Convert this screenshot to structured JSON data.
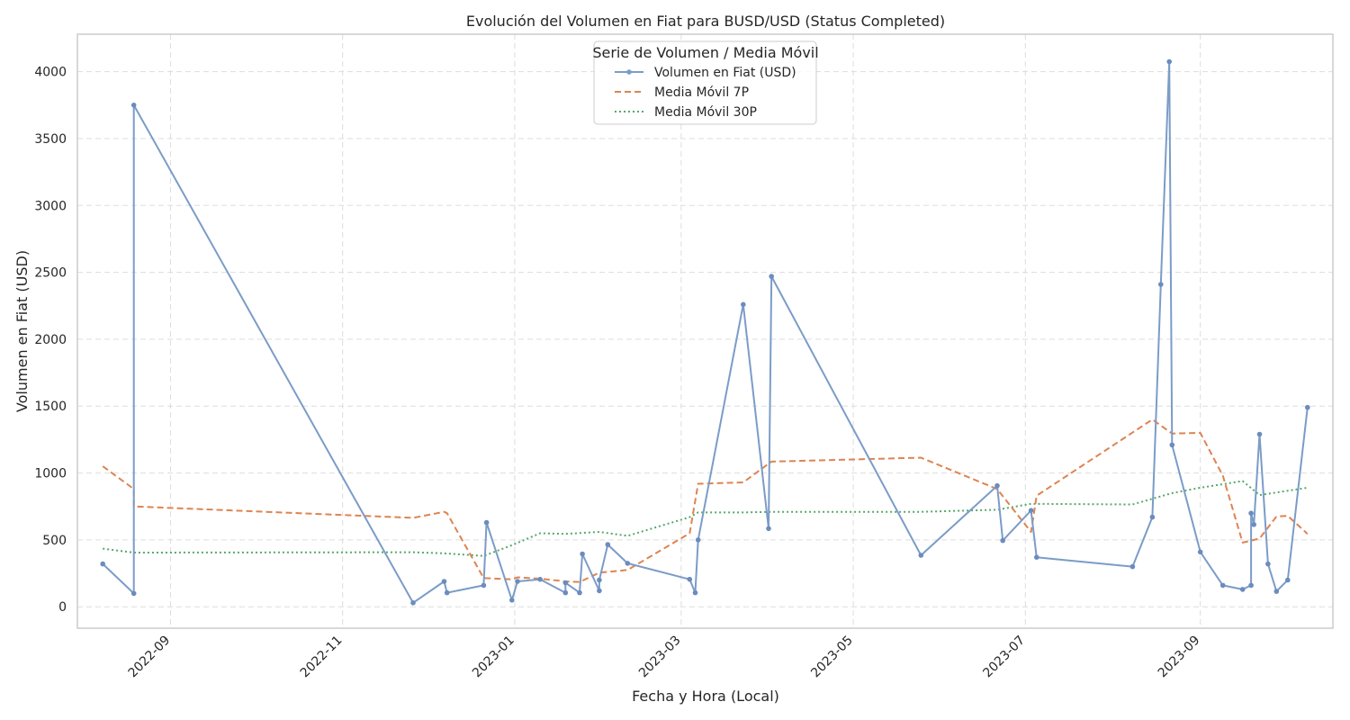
{
  "chart_data": {
    "type": "line",
    "title": "Evolución del Volumen en Fiat para BUSD/USD (Status Completed)",
    "xlabel": "Fecha y Hora (Local)",
    "ylabel": "Volumen en Fiat (USD)",
    "xlim": [
      "2022-07-30",
      "2023-10-18"
    ],
    "ylim": [
      -160,
      4280
    ],
    "x_ticks": [
      "2022-09",
      "2022-11",
      "2023-01",
      "2023-03",
      "2023-05",
      "2023-07",
      "2023-09"
    ],
    "y_ticks": [
      0,
      500,
      1000,
      1500,
      2000,
      2500,
      3000,
      3500,
      4000
    ],
    "grid": true,
    "legend": {
      "title": "Serie de Volumen / Media Móvil",
      "placement": "top-center"
    },
    "colors": {
      "volume": "#7b9cc7",
      "ma7": "#dd8452",
      "ma30": "#55a868",
      "grid": "#dddddd",
      "frame": "#cccccc"
    },
    "series": [
      {
        "name": "Volumen en Fiat (USD)",
        "style": "solid-markers",
        "points": [
          [
            "2022-08-08",
            320
          ],
          [
            "2022-08-19",
            100
          ],
          [
            "2022-08-19",
            3750
          ],
          [
            "2022-11-26",
            30
          ],
          [
            "2022-12-07",
            190
          ],
          [
            "2022-12-08",
            105
          ],
          [
            "2022-12-21",
            160
          ],
          [
            "2022-12-22",
            630
          ],
          [
            "2022-12-31",
            50
          ],
          [
            "2023-01-02",
            190
          ],
          [
            "2023-01-10",
            205
          ],
          [
            "2023-01-19",
            105
          ],
          [
            "2023-01-19",
            180
          ],
          [
            "2023-01-24",
            105
          ],
          [
            "2023-01-25",
            395
          ],
          [
            "2023-01-31",
            120
          ],
          [
            "2023-01-31",
            200
          ],
          [
            "2023-02-03",
            465
          ],
          [
            "2023-02-10",
            325
          ],
          [
            "2023-03-04",
            205
          ],
          [
            "2023-03-06",
            105
          ],
          [
            "2023-03-07",
            500
          ],
          [
            "2023-03-23",
            2260
          ],
          [
            "2023-04-01",
            585
          ],
          [
            "2023-04-02",
            2470
          ],
          [
            "2023-05-25",
            385
          ],
          [
            "2023-06-21",
            905
          ],
          [
            "2023-06-23",
            495
          ],
          [
            "2023-07-03",
            720
          ],
          [
            "2023-07-05",
            370
          ],
          [
            "2023-08-08",
            300
          ],
          [
            "2023-08-15",
            670
          ],
          [
            "2023-08-18",
            2410
          ],
          [
            "2023-08-21",
            4075
          ],
          [
            "2023-08-22",
            1210
          ],
          [
            "2023-09-01",
            410
          ],
          [
            "2023-09-09",
            160
          ],
          [
            "2023-09-16",
            130
          ],
          [
            "2023-09-19",
            160
          ],
          [
            "2023-09-19",
            700
          ],
          [
            "2023-09-20",
            615
          ],
          [
            "2023-09-22",
            1290
          ],
          [
            "2023-09-25",
            320
          ],
          [
            "2023-09-28",
            115
          ],
          [
            "2023-10-02",
            200
          ],
          [
            "2023-10-09",
            1490
          ]
        ]
      },
      {
        "name": "Media Móvil 7P",
        "style": "dashed",
        "points": [
          [
            "2022-08-08",
            1050
          ],
          [
            "2022-08-19",
            880
          ],
          [
            "2022-08-19",
            750
          ],
          [
            "2022-11-26",
            665
          ],
          [
            "2022-12-07",
            710
          ],
          [
            "2022-12-08",
            700
          ],
          [
            "2022-12-21",
            215
          ],
          [
            "2022-12-31",
            205
          ],
          [
            "2023-01-02",
            220
          ],
          [
            "2023-01-10",
            210
          ],
          [
            "2023-01-19",
            190
          ],
          [
            "2023-01-24",
            185
          ],
          [
            "2023-01-31",
            255
          ],
          [
            "2023-02-10",
            275
          ],
          [
            "2023-03-04",
            550
          ],
          [
            "2023-03-07",
            920
          ],
          [
            "2023-03-23",
            930
          ],
          [
            "2023-04-02",
            1085
          ],
          [
            "2023-05-25",
            1115
          ],
          [
            "2023-06-21",
            880
          ],
          [
            "2023-07-03",
            560
          ],
          [
            "2023-07-05",
            830
          ],
          [
            "2023-08-15",
            1400
          ],
          [
            "2023-08-22",
            1295
          ],
          [
            "2023-09-01",
            1300
          ],
          [
            "2023-09-09",
            980
          ],
          [
            "2023-09-16",
            480
          ],
          [
            "2023-09-22",
            510
          ],
          [
            "2023-09-28",
            675
          ],
          [
            "2023-10-02",
            680
          ],
          [
            "2023-10-09",
            545
          ]
        ]
      },
      {
        "name": "Media Móvil 30P",
        "style": "dotted",
        "points": [
          [
            "2022-08-08",
            435
          ],
          [
            "2022-08-19",
            405
          ],
          [
            "2022-11-26",
            408
          ],
          [
            "2022-12-07",
            400
          ],
          [
            "2022-12-21",
            380
          ],
          [
            "2022-12-31",
            460
          ],
          [
            "2023-01-10",
            550
          ],
          [
            "2023-01-19",
            545
          ],
          [
            "2023-01-31",
            560
          ],
          [
            "2023-02-10",
            530
          ],
          [
            "2023-03-04",
            670
          ],
          [
            "2023-03-07",
            705
          ],
          [
            "2023-03-23",
            705
          ],
          [
            "2023-04-02",
            710
          ],
          [
            "2023-05-25",
            710
          ],
          [
            "2023-06-21",
            725
          ],
          [
            "2023-07-03",
            770
          ],
          [
            "2023-08-08",
            765
          ],
          [
            "2023-08-22",
            850
          ],
          [
            "2023-09-01",
            890
          ],
          [
            "2023-09-16",
            940
          ],
          [
            "2023-09-22",
            835
          ],
          [
            "2023-10-09",
            890
          ]
        ]
      }
    ]
  }
}
